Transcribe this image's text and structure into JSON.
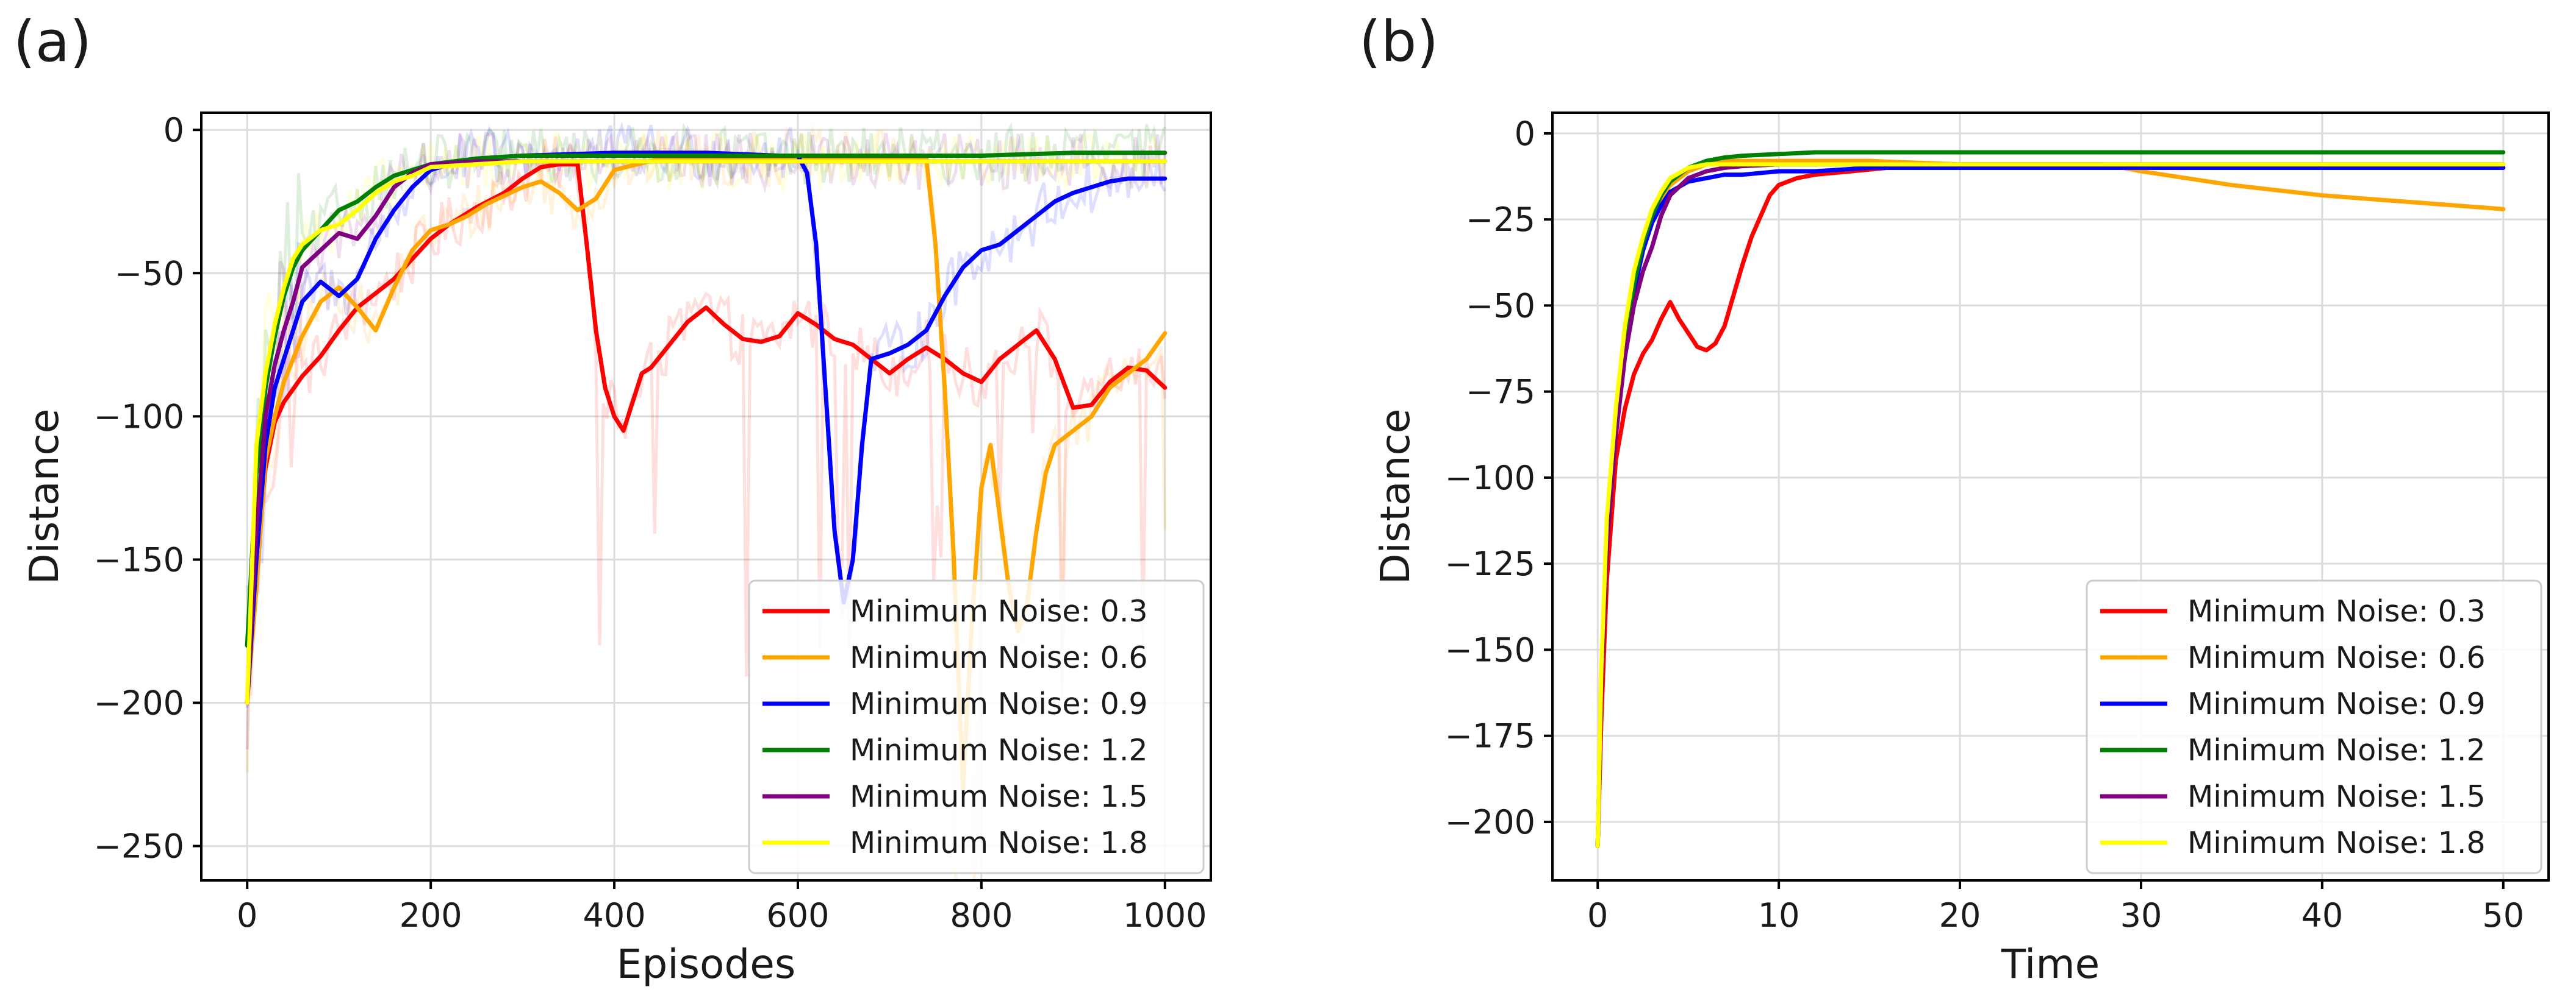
{
  "chart_data": [
    {
      "type": "line",
      "panel_label": "(a)",
      "xlabel": "Episodes",
      "ylabel": "Distance",
      "xlim": [
        -50,
        1050
      ],
      "ylim": [
        -262,
        6
      ],
      "x_ticks": [
        0,
        200,
        400,
        600,
        800,
        1000
      ],
      "y_ticks": [
        0,
        -50,
        -100,
        -150,
        -200,
        -250
      ],
      "x_tick_labels": [
        "0",
        "200",
        "400",
        "600",
        "800",
        "1000"
      ],
      "y_tick_labels": [
        "0",
        "−50",
        "−100",
        "−150",
        "−200",
        "−250"
      ],
      "grid": true,
      "legend_position": "lower right",
      "raw_episode_traces_shown": true,
      "series": [
        {
          "name": "Minimum Noise: 0.3",
          "color": "#ff0000",
          "x": [
            0,
            10,
            20,
            30,
            40,
            60,
            80,
            100,
            120,
            140,
            160,
            180,
            200,
            220,
            250,
            280,
            300,
            320,
            340,
            360,
            370,
            380,
            390,
            400,
            410,
            420,
            430,
            440,
            460,
            480,
            500,
            520,
            540,
            560,
            580,
            600,
            620,
            640,
            660,
            680,
            700,
            720,
            740,
            760,
            780,
            800,
            820,
            840,
            860,
            880,
            900,
            920,
            940,
            960,
            980,
            1000
          ],
          "y": [
            -200,
            -150,
            -118,
            -102,
            -95,
            -86,
            -79,
            -70,
            -62,
            -57,
            -52,
            -45,
            -38,
            -33,
            -27,
            -22,
            -17,
            -13,
            -12,
            -12,
            -40,
            -70,
            -90,
            -100,
            -105,
            -95,
            -85,
            -83,
            -75,
            -67,
            -62,
            -68,
            -73,
            -74,
            -72,
            -64,
            -68,
            -73,
            -75,
            -80,
            -85,
            -80,
            -76,
            -80,
            -85,
            -88,
            -80,
            -75,
            -70,
            -80,
            -97,
            -96,
            -88,
            -83,
            -84,
            -90
          ]
        },
        {
          "name": "Minimum Noise: 0.6",
          "color": "#ffa500",
          "x": [
            0,
            10,
            20,
            30,
            40,
            60,
            80,
            100,
            120,
            140,
            160,
            180,
            200,
            220,
            240,
            260,
            280,
            300,
            320,
            340,
            360,
            380,
            400,
            450,
            500,
            550,
            600,
            650,
            700,
            720,
            740,
            750,
            760,
            770,
            780,
            790,
            800,
            810,
            820,
            830,
            840,
            850,
            860,
            870,
            880,
            900,
            920,
            940,
            960,
            980,
            1000
          ],
          "y": [
            -200,
            -160,
            -115,
            -100,
            -88,
            -72,
            -60,
            -55,
            -62,
            -70,
            -55,
            -42,
            -35,
            -33,
            -30,
            -26,
            -23,
            -20,
            -18,
            -22,
            -28,
            -24,
            -14,
            -10,
            -10,
            -10,
            -10,
            -10,
            -10,
            -10,
            -10,
            -40,
            -90,
            -150,
            -230,
            -170,
            -125,
            -110,
            -135,
            -160,
            -175,
            -165,
            -140,
            -120,
            -110,
            -105,
            -100,
            -90,
            -85,
            -80,
            -71
          ]
        },
        {
          "name": "Minimum Noise: 0.9",
          "color": "#0000ff",
          "x": [
            0,
            10,
            20,
            30,
            40,
            50,
            60,
            80,
            100,
            120,
            140,
            160,
            180,
            200,
            220,
            250,
            300,
            400,
            500,
            580,
            600,
            610,
            620,
            630,
            640,
            650,
            660,
            670,
            680,
            700,
            720,
            740,
            760,
            780,
            800,
            820,
            840,
            860,
            880,
            900,
            920,
            940,
            960,
            980,
            1000
          ],
          "y": [
            -200,
            -150,
            -110,
            -90,
            -80,
            -70,
            -60,
            -53,
            -58,
            -52,
            -38,
            -28,
            -20,
            -14,
            -12,
            -10,
            -9,
            -8,
            -8,
            -9,
            -9,
            -15,
            -40,
            -90,
            -140,
            -165,
            -150,
            -110,
            -80,
            -78,
            -75,
            -70,
            -58,
            -48,
            -42,
            -40,
            -35,
            -30,
            -25,
            -22,
            -20,
            -18,
            -17,
            -17,
            -17
          ]
        },
        {
          "name": "Minimum Noise: 1.2",
          "color": "#008000",
          "x": [
            0,
            10,
            20,
            30,
            40,
            50,
            60,
            80,
            100,
            120,
            140,
            160,
            180,
            200,
            250,
            300,
            400,
            500,
            600,
            700,
            800,
            900,
            1000
          ],
          "y": [
            -180,
            -120,
            -90,
            -72,
            -58,
            -48,
            -42,
            -35,
            -28,
            -25,
            -20,
            -16,
            -14,
            -12,
            -10,
            -9,
            -9,
            -9,
            -9,
            -9,
            -9,
            -8,
            -8
          ]
        },
        {
          "name": "Minimum Noise: 1.5",
          "color": "#800080",
          "x": [
            0,
            10,
            20,
            30,
            40,
            50,
            60,
            80,
            100,
            120,
            140,
            160,
            180,
            200,
            250,
            300,
            400,
            500,
            600,
            700,
            800,
            900,
            1000
          ],
          "y": [
            -200,
            -140,
            -100,
            -82,
            -70,
            -60,
            -48,
            -42,
            -36,
            -38,
            -30,
            -20,
            -15,
            -12,
            -11,
            -11,
            -11,
            -11,
            -11,
            -11,
            -11,
            -11,
            -11
          ]
        },
        {
          "name": "Minimum Noise: 1.8",
          "color": "#ffff00",
          "x": [
            0,
            10,
            20,
            30,
            40,
            50,
            60,
            80,
            100,
            120,
            140,
            160,
            180,
            200,
            250,
            300,
            400,
            500,
            600,
            700,
            800,
            900,
            1000
          ],
          "y": [
            -200,
            -110,
            -85,
            -68,
            -55,
            -45,
            -40,
            -35,
            -33,
            -28,
            -22,
            -18,
            -16,
            -13,
            -12,
            -11,
            -11,
            -11,
            -11,
            -11,
            -11,
            -11,
            -11
          ]
        }
      ]
    },
    {
      "type": "line",
      "panel_label": "(b)",
      "xlabel": "Time",
      "ylabel": "Distance",
      "xlim": [
        -2.5,
        52.5
      ],
      "ylim": [
        -217,
        6
      ],
      "x_ticks": [
        0,
        10,
        20,
        30,
        40,
        50
      ],
      "y_ticks": [
        0,
        -25,
        -50,
        -75,
        -100,
        -125,
        -150,
        -175,
        -200
      ],
      "x_tick_labels": [
        "0",
        "10",
        "20",
        "30",
        "40",
        "50"
      ],
      "y_tick_labels": [
        "0",
        "−25",
        "−50",
        "−75",
        "−100",
        "−125",
        "−150",
        "−175",
        "−200"
      ],
      "grid": true,
      "legend_position": "lower right",
      "series": [
        {
          "name": "Minimum Noise: 0.3",
          "color": "#ff0000",
          "x": [
            0,
            0.2,
            0.5,
            1,
            1.5,
            2,
            2.5,
            3,
            3.5,
            4,
            4.5,
            5,
            5.5,
            6,
            6.5,
            7,
            7.5,
            8,
            8.5,
            9,
            9.5,
            10,
            11,
            12,
            14,
            16,
            20,
            25,
            30,
            40,
            50
          ],
          "y": [
            -207,
            -170,
            -130,
            -95,
            -80,
            -70,
            -64,
            -60,
            -54,
            -49,
            -54,
            -58,
            -62,
            -63,
            -61,
            -56,
            -47,
            -38,
            -30,
            -24,
            -18,
            -15,
            -13,
            -12,
            -11,
            -10,
            -10,
            -10,
            -10,
            -10,
            -10
          ]
        },
        {
          "name": "Minimum Noise: 0.6",
          "color": "#ffa500",
          "x": [
            0,
            0.2,
            0.5,
            1,
            1.5,
            2,
            2.5,
            3,
            3.5,
            4,
            5,
            6,
            7,
            8,
            10,
            15,
            20,
            25,
            28,
            30,
            35,
            40,
            45,
            50
          ],
          "y": [
            -207,
            -160,
            -120,
            -85,
            -60,
            -45,
            -33,
            -25,
            -19,
            -15,
            -11,
            -9,
            -8,
            -8,
            -8,
            -8,
            -9,
            -9,
            -9,
            -11,
            -15,
            -18,
            -20,
            -22
          ]
        },
        {
          "name": "Minimum Noise: 0.9",
          "color": "#0000ff",
          "x": [
            0,
            0.2,
            0.5,
            1,
            1.5,
            2,
            2.5,
            3,
            3.5,
            4,
            5,
            6,
            7,
            8,
            10,
            12,
            15,
            20,
            30,
            40,
            50
          ],
          "y": [
            -207,
            -160,
            -120,
            -85,
            -62,
            -46,
            -34,
            -26,
            -21,
            -17,
            -14,
            -13,
            -12,
            -12,
            -11,
            -11,
            -10,
            -10,
            -10,
            -10,
            -10
          ]
        },
        {
          "name": "Minimum Noise: 1.2",
          "color": "#008000",
          "x": [
            0,
            0.2,
            0.5,
            1,
            1.5,
            2,
            2.5,
            3,
            3.5,
            4,
            5,
            6,
            7,
            8,
            10,
            12,
            15,
            20,
            30,
            40,
            50
          ],
          "y": [
            -207,
            -160,
            -120,
            -85,
            -60,
            -44,
            -32,
            -24,
            -18,
            -14,
            -10,
            -8,
            -7,
            -6.5,
            -6,
            -5.5,
            -5.5,
            -5.5,
            -5.5,
            -5.5,
            -5.5
          ]
        },
        {
          "name": "Minimum Noise: 1.5",
          "color": "#800080",
          "x": [
            0,
            0.2,
            0.5,
            1,
            1.5,
            2,
            2.5,
            3,
            3.5,
            4,
            5,
            6,
            7,
            8,
            10,
            15,
            20,
            30,
            40,
            50
          ],
          "y": [
            -207,
            -160,
            -120,
            -88,
            -65,
            -50,
            -40,
            -33,
            -24,
            -18,
            -13,
            -11,
            -10,
            -9.5,
            -9,
            -9,
            -9,
            -9,
            -9,
            -9
          ]
        },
        {
          "name": "Minimum Noise: 1.8",
          "color": "#ffff00",
          "x": [
            0,
            0.2,
            0.5,
            1,
            1.5,
            2,
            2.5,
            3,
            3.5,
            4,
            5,
            6,
            7,
            8,
            10,
            15,
            20,
            30,
            40,
            50
          ],
          "y": [
            -207,
            -155,
            -112,
            -80,
            -56,
            -40,
            -30,
            -22,
            -17,
            -13,
            -10,
            -9,
            -9,
            -9,
            -9,
            -9,
            -9,
            -9,
            -9,
            -9
          ]
        }
      ]
    }
  ]
}
